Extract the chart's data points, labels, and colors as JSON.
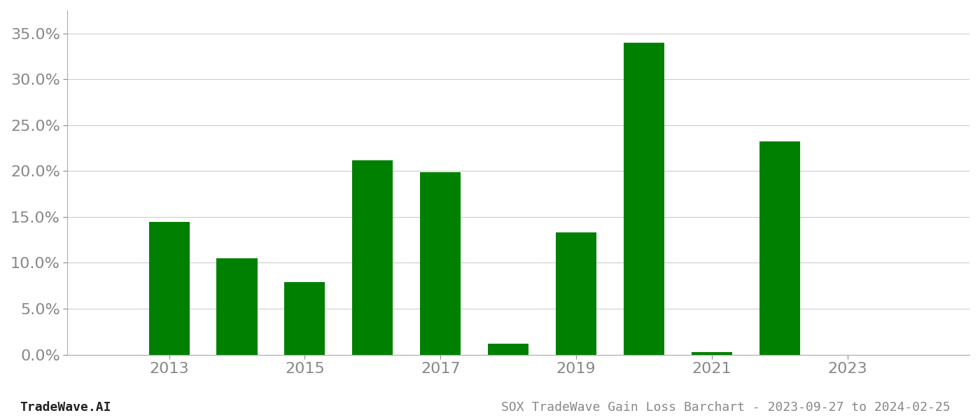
{
  "years": [
    2013,
    2014,
    2015,
    2016,
    2017,
    2018,
    2019,
    2020,
    2021,
    2022,
    2023
  ],
  "values": [
    0.145,
    0.105,
    0.079,
    0.212,
    0.199,
    0.012,
    0.133,
    0.34,
    0.003,
    0.232,
    0.0
  ],
  "bar_color": "#008000",
  "background_color": "#ffffff",
  "grid_color": "#cccccc",
  "axis_label_color": "#888888",
  "footer_text_color": "#222222",
  "title": "SOX TradeWave Gain Loss Barchart - 2023-09-27 to 2024-02-25",
  "footer_left": "TradeWave.AI",
  "ylim": [
    0,
    0.375
  ],
  "yticks": [
    0.0,
    0.05,
    0.1,
    0.15,
    0.2,
    0.25,
    0.3,
    0.35
  ],
  "xtick_years": [
    2013,
    2015,
    2017,
    2019,
    2021,
    2023
  ],
  "tick_fontsize": 16,
  "footer_fontsize": 13,
  "title_fontsize": 13,
  "bar_width": 0.6,
  "xlim": [
    2011.5,
    2024.8
  ]
}
